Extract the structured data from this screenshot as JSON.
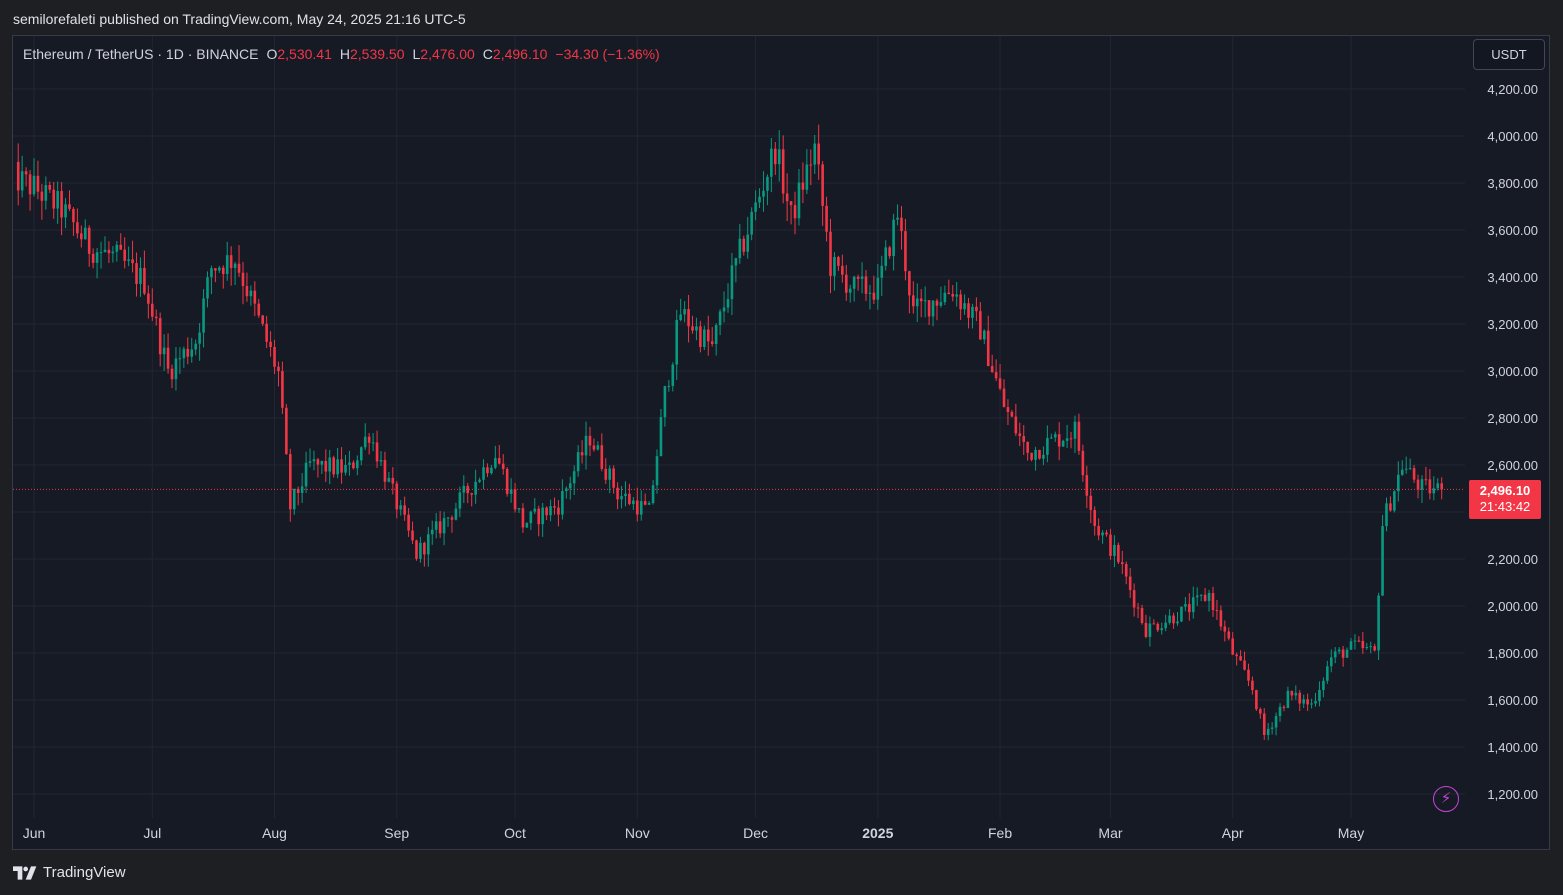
{
  "header": {
    "published_text": "semilorefaleti published on TradingView.com, May 24, 2025 21:16 UTC-5"
  },
  "legend": {
    "symbol": "Ethereum / TetherUS · 1D · BINANCE",
    "open_label": "O",
    "open": "2,530.41",
    "high_label": "H",
    "high": "2,539.50",
    "low_label": "L",
    "low": "2,476.00",
    "close_label": "C",
    "close": "2,496.10",
    "change": "−34.30 (−1.36%)"
  },
  "currency_button": "USDT",
  "price_tag": {
    "price": "2,496.10",
    "countdown": "21:43:42"
  },
  "brand": "TradingView",
  "colors": {
    "up": "#089981",
    "down": "#f23645",
    "background": "#161a25",
    "grid": "#232632",
    "accent": "#c544d8"
  },
  "icons": {
    "alert": "lightning-icon",
    "logo": "tradingview-logo-icon"
  },
  "chart_data": {
    "type": "candlestick",
    "symbol": "ETHUSDT",
    "interval": "1D",
    "exchange": "BINANCE",
    "currency": "USDT",
    "ylim": [
      1160,
      4300
    ],
    "y_ticks": [
      1200,
      1400,
      1600,
      1800,
      2000,
      2200,
      2400,
      2600,
      2800,
      3000,
      3200,
      3400,
      3600,
      3800,
      4000,
      4200
    ],
    "y_tick_labels": [
      "1,200.00",
      "1,400.00",
      "1,600.00",
      "1,800.00",
      "2,000.00",
      "2,200.00",
      "2,400.00",
      "2,600.00",
      "2,800.00",
      "3,000.00",
      "3,200.00",
      "3,400.00",
      "3,600.00",
      "3,800.00",
      "4,000.00",
      "4,200.00"
    ],
    "x_labels": [
      {
        "label": "Jun",
        "date": "2024-06-01"
      },
      {
        "label": "Jul",
        "date": "2024-07-01"
      },
      {
        "label": "Aug",
        "date": "2024-08-01"
      },
      {
        "label": "Sep",
        "date": "2024-09-01"
      },
      {
        "label": "Oct",
        "date": "2024-10-01"
      },
      {
        "label": "Nov",
        "date": "2024-11-01"
      },
      {
        "label": "Dec",
        "date": "2024-12-01"
      },
      {
        "label": "2025",
        "date": "2025-01-01",
        "bold": true
      },
      {
        "label": "Feb",
        "date": "2025-02-01"
      },
      {
        "label": "Mar",
        "date": "2025-03-01"
      },
      {
        "label": "Apr",
        "date": "2025-04-01"
      },
      {
        "label": "May",
        "date": "2025-05-01"
      }
    ],
    "last_price": 2496.1,
    "closes": [
      {
        "date": "2024-05-26",
        "close": 3830
      },
      {
        "date": "2024-06-01",
        "close": 3780
      },
      {
        "date": "2024-06-08",
        "close": 3690
      },
      {
        "date": "2024-06-15",
        "close": 3530
      },
      {
        "date": "2024-06-22",
        "close": 3480
      },
      {
        "date": "2024-06-29",
        "close": 3380
      },
      {
        "date": "2024-07-05",
        "close": 3000
      },
      {
        "date": "2024-07-12",
        "close": 3130
      },
      {
        "date": "2024-07-16",
        "close": 3440
      },
      {
        "date": "2024-07-22",
        "close": 3480
      },
      {
        "date": "2024-07-27",
        "close": 3260
      },
      {
        "date": "2024-08-02",
        "close": 2990
      },
      {
        "date": "2024-08-05",
        "close": 2420
      },
      {
        "date": "2024-08-10",
        "close": 2600
      },
      {
        "date": "2024-08-20",
        "close": 2580
      },
      {
        "date": "2024-08-25",
        "close": 2740
      },
      {
        "date": "2024-08-30",
        "close": 2520
      },
      {
        "date": "2024-09-06",
        "close": 2220
      },
      {
        "date": "2024-09-15",
        "close": 2400
      },
      {
        "date": "2024-09-26",
        "close": 2650
      },
      {
        "date": "2024-10-03",
        "close": 2350
      },
      {
        "date": "2024-10-12",
        "close": 2430
      },
      {
        "date": "2024-10-20",
        "close": 2720
      },
      {
        "date": "2024-10-27",
        "close": 2480
      },
      {
        "date": "2024-11-04",
        "close": 2400
      },
      {
        "date": "2024-11-08",
        "close": 2900
      },
      {
        "date": "2024-11-12",
        "close": 3250
      },
      {
        "date": "2024-11-20",
        "close": 3100
      },
      {
        "date": "2024-11-25",
        "close": 3400
      },
      {
        "date": "2024-12-01",
        "close": 3700
      },
      {
        "date": "2024-12-06",
        "close": 3950
      },
      {
        "date": "2024-12-10",
        "close": 3650
      },
      {
        "date": "2024-12-16",
        "close": 3950
      },
      {
        "date": "2024-12-20",
        "close": 3450
      },
      {
        "date": "2024-12-26",
        "close": 3350
      },
      {
        "date": "2025-01-01",
        "close": 3350
      },
      {
        "date": "2025-01-06",
        "close": 3670
      },
      {
        "date": "2025-01-10",
        "close": 3250
      },
      {
        "date": "2025-01-20",
        "close": 3350
      },
      {
        "date": "2025-01-27",
        "close": 3180
      },
      {
        "date": "2025-02-02",
        "close": 2850
      },
      {
        "date": "2025-02-08",
        "close": 2650
      },
      {
        "date": "2025-02-20",
        "close": 2750
      },
      {
        "date": "2025-02-25",
        "close": 2350
      },
      {
        "date": "2025-03-03",
        "close": 2200
      },
      {
        "date": "2025-03-10",
        "close": 1900
      },
      {
        "date": "2025-03-20",
        "close": 1980
      },
      {
        "date": "2025-03-26",
        "close": 2050
      },
      {
        "date": "2025-04-01",
        "close": 1800
      },
      {
        "date": "2025-04-06",
        "close": 1650
      },
      {
        "date": "2025-04-09",
        "close": 1450
      },
      {
        "date": "2025-04-15",
        "close": 1620
      },
      {
        "date": "2025-04-21",
        "close": 1580
      },
      {
        "date": "2025-04-26",
        "close": 1780
      },
      {
        "date": "2025-05-02",
        "close": 1830
      },
      {
        "date": "2025-05-07",
        "close": 1800
      },
      {
        "date": "2025-05-09",
        "close": 2350
      },
      {
        "date": "2025-05-14",
        "close": 2600
      },
      {
        "date": "2025-05-19",
        "close": 2500
      },
      {
        "date": "2025-05-24",
        "close": 2496.1
      }
    ]
  }
}
